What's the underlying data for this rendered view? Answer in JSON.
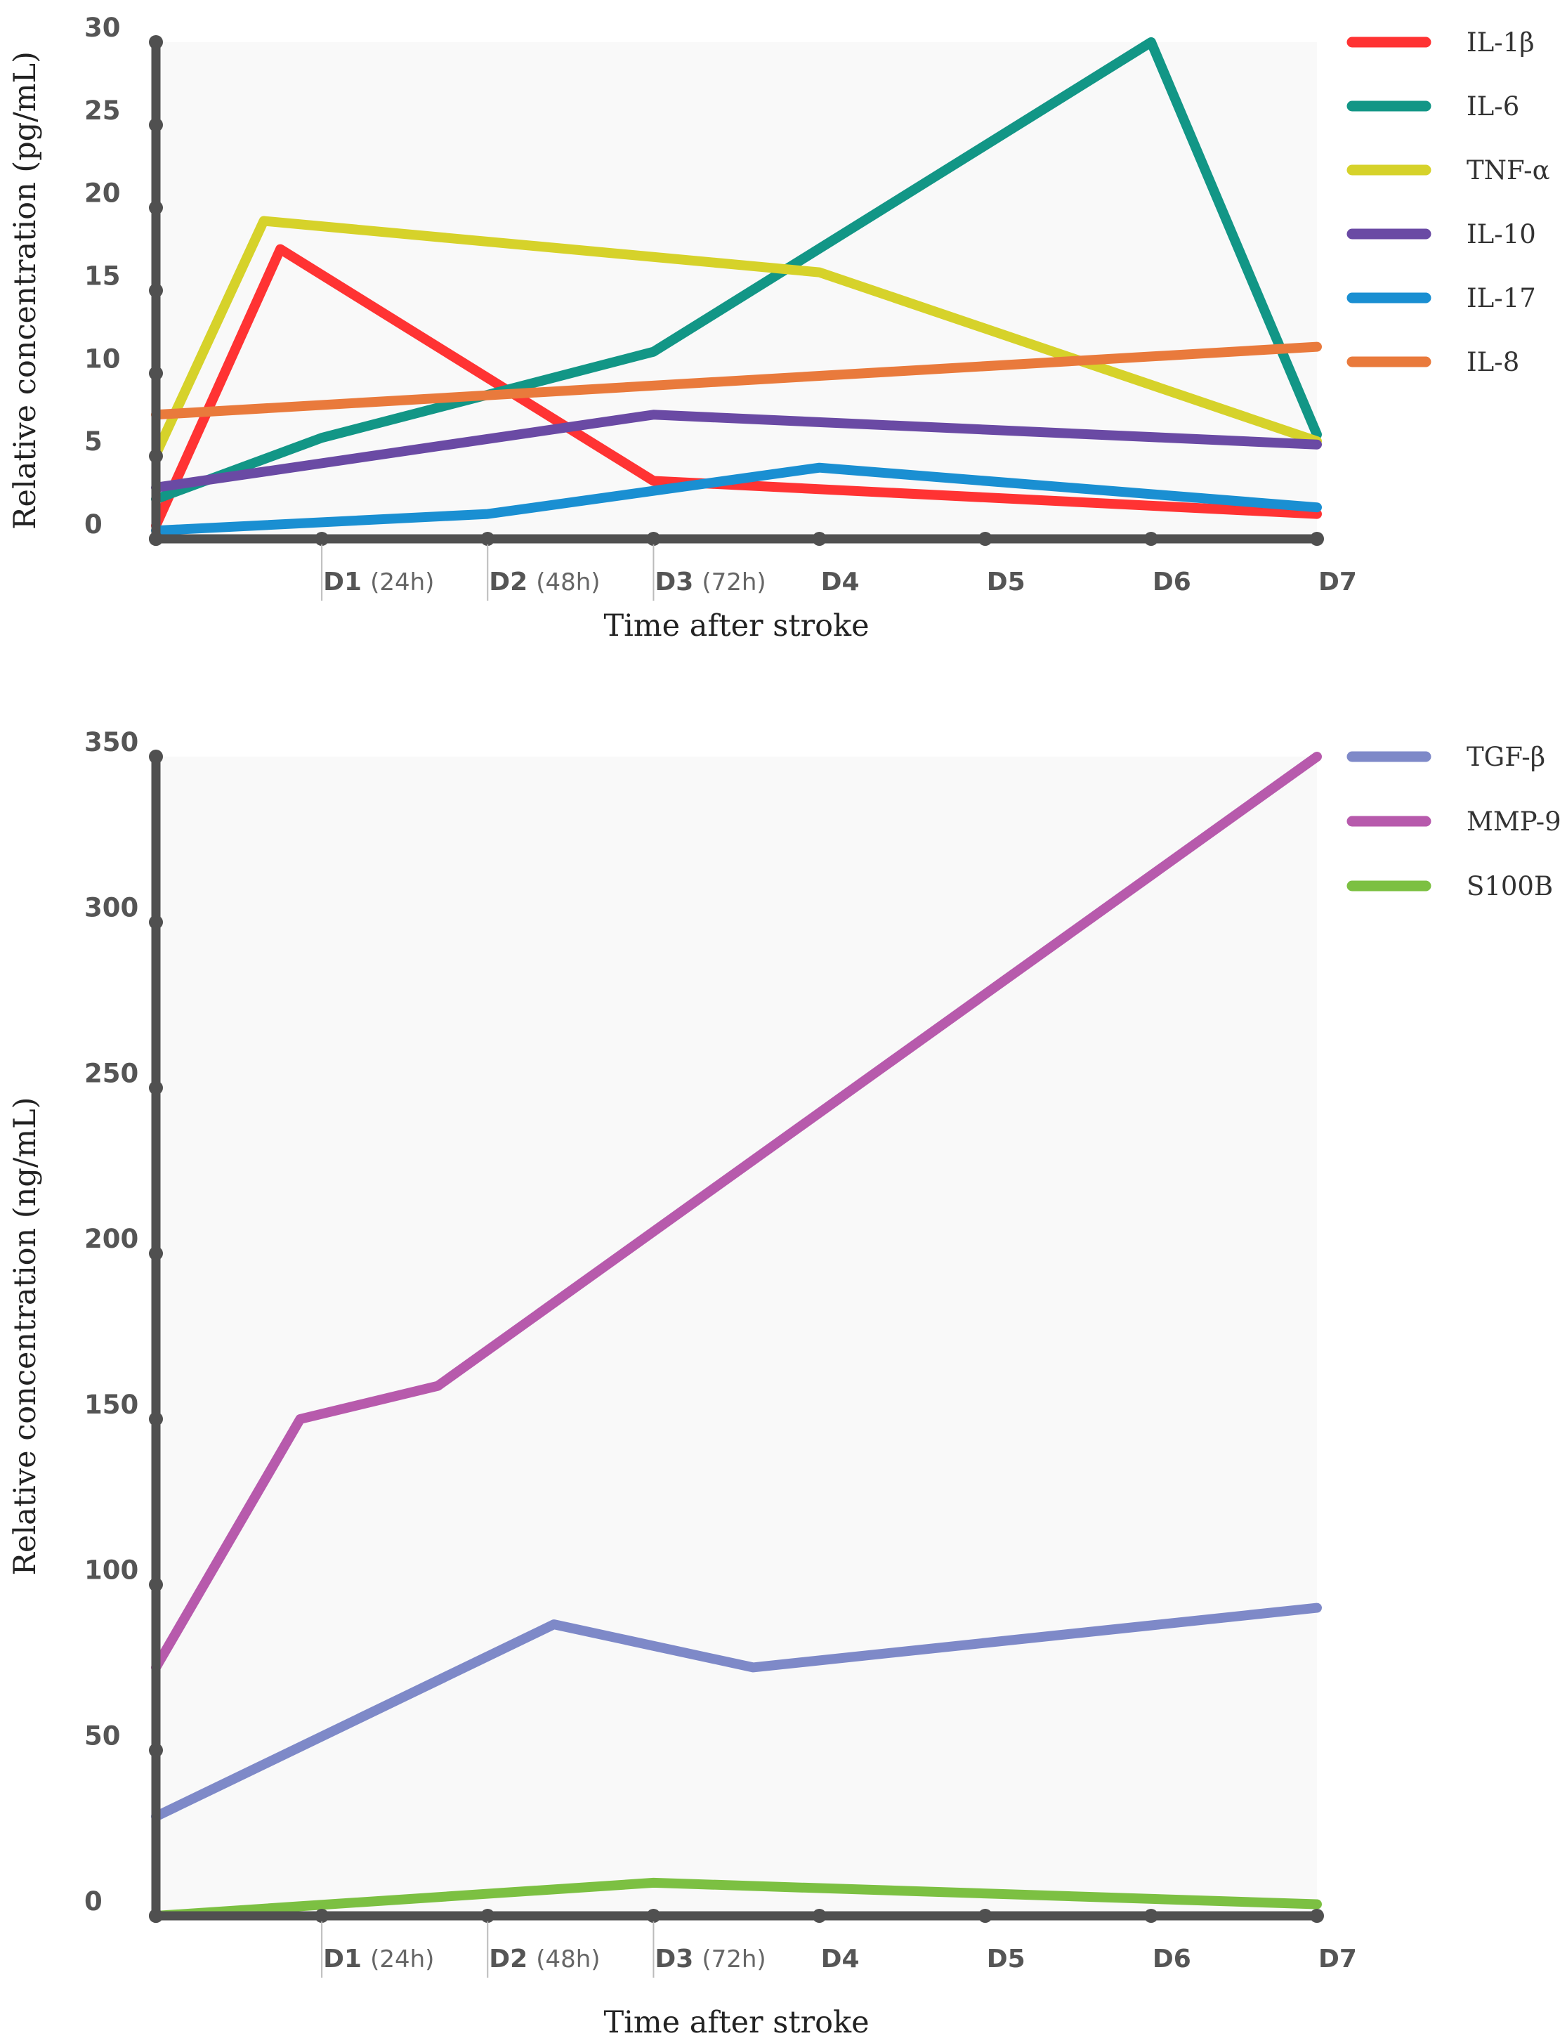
{
  "chart_data": [
    {
      "type": "line",
      "title": "",
      "xlabel": "Time after stroke",
      "ylabel": "Relative concentration (pg/mL)",
      "xlim": [
        0,
        7
      ],
      "ylim": [
        0,
        30
      ],
      "yticks": [
        "0",
        "5",
        "10",
        "15",
        "20",
        "25",
        "30"
      ],
      "xticks": [
        {
          "day": "D1",
          "hours": "(24h)"
        },
        {
          "day": "D2",
          "hours": "(48h)"
        },
        {
          "day": "D3",
          "hours": "(72h)"
        },
        {
          "day": "D4",
          "hours": ""
        },
        {
          "day": "D5",
          "hours": ""
        },
        {
          "day": "D6",
          "hours": ""
        },
        {
          "day": "D7",
          "hours": ""
        }
      ],
      "legend_position": "top-right, outside plot",
      "series": [
        {
          "name": "IL-1β",
          "color": "#ff3333",
          "points": [
            [
              0,
              0.8
            ],
            [
              0.75,
              17.5
            ],
            [
              3,
              3.5
            ],
            [
              7,
              1.5
            ]
          ]
        },
        {
          "name": "IL-6",
          "color": "#129686",
          "points": [
            [
              0,
              2.4
            ],
            [
              1,
              6.1
            ],
            [
              3,
              11.3
            ],
            [
              6,
              30
            ],
            [
              7,
              6.3
            ]
          ]
        },
        {
          "name": "TNF-α",
          "color": "#d6d22a",
          "points": [
            [
              0,
              5.1
            ],
            [
              0.65,
              19.2
            ],
            [
              4,
              16.1
            ],
            [
              7,
              5.9
            ]
          ]
        },
        {
          "name": "IL-10",
          "color": "#6a4aa4",
          "points": [
            [
              0,
              3.1
            ],
            [
              3,
              7.5
            ],
            [
              7,
              5.7
            ]
          ]
        },
        {
          "name": "IL-17",
          "color": "#1a8fd2",
          "points": [
            [
              0,
              0.5
            ],
            [
              2,
              1.5
            ],
            [
              4,
              4.3
            ],
            [
              7,
              1.9
            ]
          ]
        },
        {
          "name": "IL-8",
          "color": "#e97a3c",
          "points": [
            [
              0,
              7.5
            ],
            [
              7,
              11.6
            ]
          ]
        }
      ]
    },
    {
      "type": "line",
      "title": "",
      "xlabel": "Time after stroke",
      "ylabel": "Relative concentration (ng/mL)",
      "xlim": [
        0,
        7
      ],
      "ylim": [
        0,
        350
      ],
      "yticks": [
        "0",
        "50",
        "100",
        "150",
        "200",
        "250",
        "300",
        "350"
      ],
      "xticks": [
        {
          "day": "D1",
          "hours": "(24h)"
        },
        {
          "day": "D2",
          "hours": "(48h)"
        },
        {
          "day": "D3",
          "hours": "(72h)"
        },
        {
          "day": "D4",
          "hours": ""
        },
        {
          "day": "D5",
          "hours": ""
        },
        {
          "day": "D6",
          "hours": ""
        },
        {
          "day": "D7",
          "hours": ""
        }
      ],
      "legend_position": "top-right, outside plot",
      "series": [
        {
          "name": "TGF-β",
          "color": "#7e89c8",
          "points": [
            [
              0,
              30
            ],
            [
              2.4,
              88
            ],
            [
              3.6,
              75
            ],
            [
              7,
              93
            ]
          ]
        },
        {
          "name": "MMP-9",
          "color": "#b75aac",
          "points": [
            [
              0,
              75
            ],
            [
              0.87,
              150
            ],
            [
              1.7,
              160
            ],
            [
              7,
              350
            ]
          ]
        },
        {
          "name": "S100B",
          "color": "#7cc042",
          "points": [
            [
              0,
              0
            ],
            [
              3,
              10
            ],
            [
              7,
              3.5
            ]
          ]
        }
      ]
    }
  ]
}
